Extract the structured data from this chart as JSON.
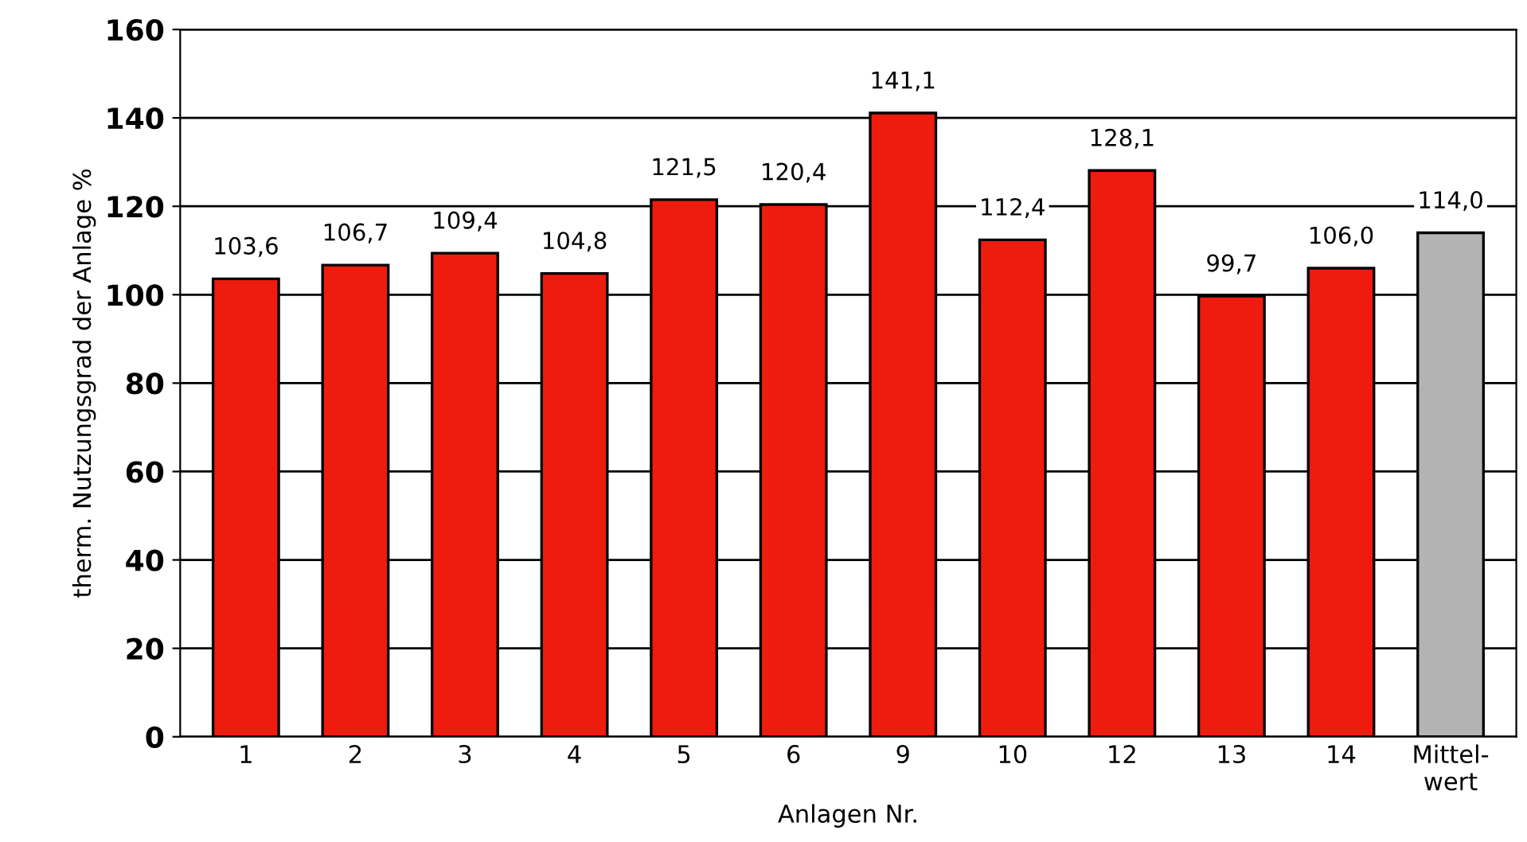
{
  "chart_data": {
    "type": "bar",
    "xlabel": "Anlagen Nr.",
    "ylabel": "therm. Nutzungsgrad der Anlage %",
    "categories": [
      "1",
      "2",
      "3",
      "4",
      "5",
      "6",
      "9",
      "10",
      "12",
      "13",
      "14",
      "Mittel-\nwert"
    ],
    "values": [
      103.6,
      106.7,
      109.4,
      104.8,
      121.5,
      120.4,
      141.1,
      112.4,
      128.1,
      99.7,
      106.0,
      114.0
    ],
    "colors": [
      "#ee1c0e",
      "#ee1c0e",
      "#ee1c0e",
      "#ee1c0e",
      "#ee1c0e",
      "#ee1c0e",
      "#ee1c0e",
      "#ee1c0e",
      "#ee1c0e",
      "#ee1c0e",
      "#ee1c0e",
      "#b3b3b3"
    ],
    "value_labels": [
      "103,6",
      "106,7",
      "109,4",
      "104,8",
      "121,5",
      "120,4",
      "141,1",
      "112,4",
      "128,1",
      "99,7",
      "106,0",
      "114,0"
    ],
    "ylim": [
      0,
      160
    ],
    "yticks": [
      0,
      20,
      40,
      60,
      80,
      100,
      120,
      140,
      160
    ],
    "grid": "y"
  }
}
